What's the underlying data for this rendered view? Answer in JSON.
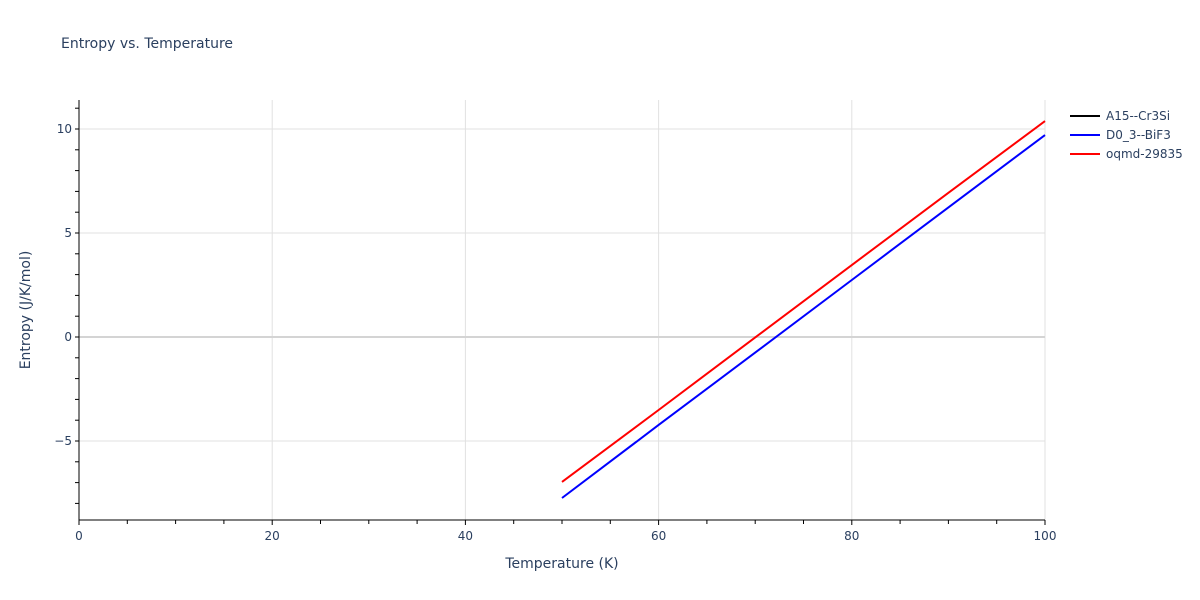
{
  "chart_data": {
    "type": "line",
    "title": "Entropy vs. Temperature",
    "xlabel": "Temperature (K)",
    "ylabel": "Entropy (J/K/mol)",
    "xlim": [
      0,
      100
    ],
    "ylim": [
      -8.8,
      11.4
    ],
    "xticks": [
      0,
      20,
      40,
      60,
      80,
      100
    ],
    "yticks": [
      -5,
      0,
      5,
      10
    ],
    "ytick_labels": [
      "−5",
      "0",
      "5",
      "10"
    ],
    "grid": true,
    "legend_position": "right-top",
    "x": [
      50,
      60,
      70,
      80,
      90,
      100
    ],
    "series": [
      {
        "name": "A15--Cr3Si",
        "color": "#000000",
        "values": []
      },
      {
        "name": "D0_3--BiF3",
        "color": "#0000ff",
        "values": [
          -7.74,
          -4.23,
          -0.75,
          2.74,
          6.23,
          9.71
        ]
      },
      {
        "name": "oqmd-29835",
        "color": "#ff0000",
        "values": [
          -6.97,
          -3.51,
          -0.02,
          3.46,
          6.93,
          10.38
        ]
      }
    ]
  }
}
